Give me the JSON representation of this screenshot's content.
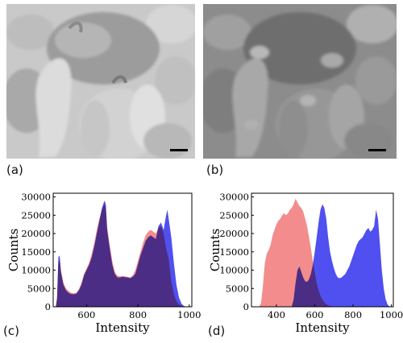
{
  "panels": {
    "a": {
      "label": "(a)"
    },
    "b": {
      "label": "(b)"
    },
    "c": {
      "label": "(c)"
    },
    "d": {
      "label": "(d)"
    }
  },
  "colors": {
    "series_red": "#f07070",
    "series_blue": "#5050f0",
    "overlap": "#8a2a8a"
  },
  "chart_data": [
    {
      "panel": "c",
      "type": "area",
      "xlabel": "Intensity",
      "ylabel": "Counts",
      "xlim": [
        470,
        1010
      ],
      "ylim": [
        0,
        31000
      ],
      "x_ticks": [
        600,
        800,
        1000
      ],
      "y_ticks": [
        0,
        5000,
        10000,
        15000,
        20000,
        25000,
        30000
      ],
      "series": [
        {
          "color": "#f07070",
          "x": [
            480,
            485,
            490,
            495,
            500,
            510,
            520,
            530,
            540,
            550,
            560,
            570,
            580,
            590,
            600,
            610,
            620,
            630,
            640,
            650,
            660,
            670,
            675,
            680,
            690,
            700,
            710,
            720,
            730,
            740,
            750,
            760,
            770,
            780,
            790,
            800,
            810,
            820,
            830,
            840,
            850,
            860,
            870,
            880,
            890,
            900,
            910,
            920,
            930,
            940,
            950,
            960,
            970,
            980,
            990,
            1000
          ],
          "y": [
            0,
            3000,
            12000,
            13000,
            10000,
            6500,
            5000,
            4300,
            3800,
            3700,
            3800,
            4800,
            6500,
            9000,
            10500,
            12000,
            14500,
            17500,
            21000,
            24000,
            26500,
            28000,
            27000,
            22000,
            17000,
            12500,
            9500,
            8500,
            8300,
            8400,
            8300,
            8200,
            8000,
            8600,
            10000,
            12500,
            15000,
            17500,
            19500,
            20500,
            21000,
            20500,
            20000,
            21500,
            22000,
            20000,
            16000,
            13000,
            7000,
            3500,
            1500,
            600,
            200,
            100,
            0,
            0
          ]
        },
        {
          "color": "#5050f0",
          "x": [
            480,
            485,
            490,
            495,
            500,
            510,
            520,
            530,
            540,
            550,
            560,
            570,
            580,
            590,
            600,
            610,
            620,
            630,
            640,
            650,
            660,
            670,
            675,
            680,
            690,
            700,
            710,
            720,
            730,
            740,
            750,
            760,
            770,
            780,
            790,
            800,
            810,
            820,
            830,
            840,
            850,
            860,
            870,
            880,
            890,
            900,
            910,
            915,
            920,
            930,
            940,
            950,
            960,
            970,
            980,
            990,
            1000
          ],
          "y": [
            0,
            2000,
            13500,
            14000,
            9500,
            6000,
            4500,
            3800,
            3500,
            3400,
            3600,
            4500,
            6000,
            8500,
            10000,
            11500,
            13500,
            16500,
            20000,
            23500,
            27000,
            29000,
            28000,
            21000,
            16000,
            11500,
            9000,
            8000,
            8000,
            8200,
            8100,
            8000,
            7800,
            8200,
            9000,
            11500,
            14000,
            16000,
            18000,
            19000,
            19500,
            19000,
            18500,
            22000,
            23000,
            21000,
            25000,
            26500,
            24000,
            19000,
            12000,
            6000,
            2500,
            800,
            200,
            0,
            0
          ]
        }
      ]
    },
    {
      "panel": "d",
      "type": "area",
      "xlabel": "Intensity",
      "ylabel": "Counts",
      "xlim": [
        270,
        1010
      ],
      "ylim": [
        0,
        31000
      ],
      "x_ticks": [
        400,
        600,
        800,
        1000
      ],
      "y_ticks": [
        0,
        5000,
        10000,
        15000,
        20000,
        25000,
        30000
      ],
      "series": [
        {
          "color": "#f07070",
          "x": [
            300,
            310,
            320,
            330,
            340,
            350,
            360,
            370,
            380,
            390,
            400,
            410,
            420,
            430,
            440,
            450,
            460,
            470,
            480,
            490,
            500,
            510,
            520,
            530,
            540,
            550,
            560,
            570,
            580,
            590,
            600,
            610,
            620,
            630,
            640,
            650,
            660,
            670,
            680,
            690,
            700
          ],
          "y": [
            0,
            0,
            1000,
            6000,
            12000,
            14500,
            15500,
            17000,
            19500,
            21000,
            22500,
            23500,
            24000,
            25000,
            25500,
            25000,
            25500,
            26500,
            27000,
            28000,
            29500,
            28500,
            27500,
            27000,
            26000,
            24000,
            22000,
            19000,
            16000,
            12500,
            9500,
            6500,
            4500,
            3000,
            2000,
            1200,
            700,
            400,
            200,
            100,
            0
          ]
        },
        {
          "color": "#5050f0",
          "x": [
            480,
            490,
            500,
            510,
            520,
            530,
            540,
            550,
            560,
            570,
            580,
            590,
            600,
            610,
            620,
            630,
            640,
            650,
            660,
            670,
            680,
            690,
            700,
            710,
            720,
            730,
            740,
            750,
            760,
            770,
            780,
            790,
            800,
            810,
            820,
            830,
            840,
            850,
            860,
            870,
            880,
            890,
            900,
            910,
            920,
            930,
            940,
            950,
            960,
            970,
            980,
            990,
            1000
          ],
          "y": [
            0,
            2000,
            6500,
            10000,
            11000,
            9500,
            8000,
            7000,
            6800,
            7500,
            9000,
            11500,
            15000,
            19000,
            23000,
            26500,
            28000,
            27000,
            24000,
            19000,
            15000,
            12500,
            10500,
            9000,
            8000,
            7800,
            8000,
            8500,
            9000,
            10000,
            11000,
            12500,
            14000,
            15500,
            17000,
            18000,
            18500,
            19000,
            20000,
            21000,
            21500,
            20500,
            21000,
            22000,
            26500,
            24000,
            17000,
            10000,
            5000,
            2000,
            600,
            100,
            0
          ]
        }
      ]
    }
  ]
}
